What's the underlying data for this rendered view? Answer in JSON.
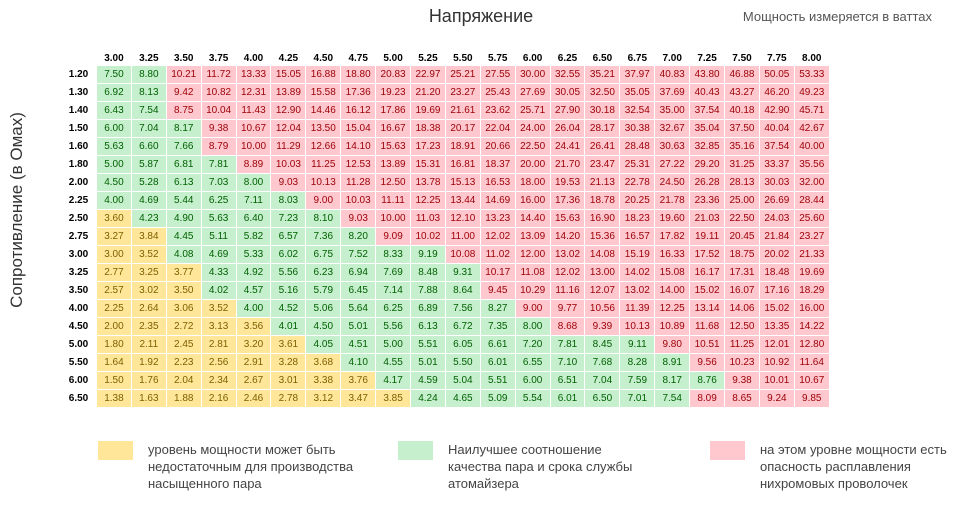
{
  "header": {
    "title": "Напряжение",
    "note": "Мощность измеряется в ваттах",
    "y_axis_label": "Сопротивление (в Омах)"
  },
  "colors": {
    "yellow": "#ffe699",
    "green": "#c6efce",
    "red": "#ffc7ce"
  },
  "chart_data": {
    "type": "table",
    "columns": [
      "3.00",
      "3.25",
      "3.50",
      "3.75",
      "4.00",
      "4.25",
      "4.50",
      "4.75",
      "5.00",
      "5.25",
      "5.50",
      "5.75",
      "6.00",
      "6.25",
      "6.50",
      "6.75",
      "7.00",
      "7.25",
      "7.50",
      "7.75",
      "8.00"
    ],
    "rows": [
      {
        "label": "1.20",
        "values": [
          "7.50",
          "8.80",
          "10.21",
          "11.72",
          "13.33",
          "15.05",
          "16.88",
          "18.80",
          "20.83",
          "22.97",
          "25.21",
          "27.55",
          "30.00",
          "32.55",
          "35.21",
          "37.97",
          "40.83",
          "43.80",
          "46.88",
          "50.05",
          "53.33"
        ],
        "classes": "ggrrrrrrrrrrrrrrrrrrr"
      },
      {
        "label": "1.30",
        "values": [
          "6.92",
          "8.13",
          "9.42",
          "10.82",
          "12.31",
          "13.89",
          "15.58",
          "17.36",
          "19.23",
          "21.20",
          "23.27",
          "25.43",
          "27.69",
          "30.05",
          "32.50",
          "35.05",
          "37.69",
          "40.43",
          "43.27",
          "46.20",
          "49.23"
        ],
        "classes": "ggrrrrrrrrrrrrrrrrrrr"
      },
      {
        "label": "1.40",
        "values": [
          "6.43",
          "7.54",
          "8.75",
          "10.04",
          "11.43",
          "12.90",
          "14.46",
          "16.12",
          "17.86",
          "19.69",
          "21.61",
          "23.62",
          "25.71",
          "27.90",
          "30.18",
          "32.54",
          "35.00",
          "37.54",
          "40.18",
          "42.90",
          "45.71"
        ],
        "classes": "ggrrrrrrrrrrrrrrrrrrr"
      },
      {
        "label": "1.50",
        "values": [
          "6.00",
          "7.04",
          "8.17",
          "9.38",
          "10.67",
          "12.04",
          "13.50",
          "15.04",
          "16.67",
          "18.38",
          "20.17",
          "22.04",
          "24.00",
          "26.04",
          "28.17",
          "30.38",
          "32.67",
          "35.04",
          "37.50",
          "40.04",
          "42.67"
        ],
        "classes": "gggrrrrrrrrrrrrrrrrrr"
      },
      {
        "label": "1.60",
        "values": [
          "5.63",
          "6.60",
          "7.66",
          "8.79",
          "10.00",
          "11.29",
          "12.66",
          "14.10",
          "15.63",
          "17.23",
          "18.91",
          "20.66",
          "22.50",
          "24.41",
          "26.41",
          "28.48",
          "30.63",
          "32.85",
          "35.16",
          "37.54",
          "40.00"
        ],
        "classes": "gggrrrrrrrrrrrrrrrrrr"
      },
      {
        "label": "1.80",
        "values": [
          "5.00",
          "5.87",
          "6.81",
          "7.81",
          "8.89",
          "10.03",
          "11.25",
          "12.53",
          "13.89",
          "15.31",
          "16.81",
          "18.37",
          "20.00",
          "21.70",
          "23.47",
          "25.31",
          "27.22",
          "29.20",
          "31.25",
          "33.37",
          "35.56"
        ],
        "classes": "ggggrrrrrrrrrrrrrrrrr"
      },
      {
        "label": "2.00",
        "values": [
          "4.50",
          "5.28",
          "6.13",
          "7.03",
          "8.00",
          "9.03",
          "10.13",
          "11.28",
          "12.50",
          "13.78",
          "15.13",
          "16.53",
          "18.00",
          "19.53",
          "21.13",
          "22.78",
          "24.50",
          "26.28",
          "28.13",
          "30.03",
          "32.00"
        ],
        "classes": "gggggrrrrrrrrrrrrrrrr"
      },
      {
        "label": "2.25",
        "values": [
          "4.00",
          "4.69",
          "5.44",
          "6.25",
          "7.11",
          "8.03",
          "9.00",
          "10.03",
          "11.11",
          "12.25",
          "13.44",
          "14.69",
          "16.00",
          "17.36",
          "18.78",
          "20.25",
          "21.78",
          "23.36",
          "25.00",
          "26.69",
          "28.44"
        ],
        "classes": "ggggggrrrrrrrrrrrrrrr"
      },
      {
        "label": "2.50",
        "values": [
          "3.60",
          "4.23",
          "4.90",
          "5.63",
          "6.40",
          "7.23",
          "8.10",
          "9.03",
          "10.00",
          "11.03",
          "12.10",
          "13.23",
          "14.40",
          "15.63",
          "16.90",
          "18.23",
          "19.60",
          "21.03",
          "22.50",
          "24.03",
          "25.60"
        ],
        "classes": "yggggggrrrrrrrrrrrrrr"
      },
      {
        "label": "2.75",
        "values": [
          "3.27",
          "3.84",
          "4.45",
          "5.11",
          "5.82",
          "6.57",
          "7.36",
          "8.20",
          "9.09",
          "10.02",
          "11.00",
          "12.02",
          "13.09",
          "14.20",
          "15.36",
          "16.57",
          "17.82",
          "19.11",
          "20.45",
          "21.84",
          "23.27"
        ],
        "classes": "yyggggggrrrrrrrrrrrrr"
      },
      {
        "label": "3.00",
        "values": [
          "3.00",
          "3.52",
          "4.08",
          "4.69",
          "5.33",
          "6.02",
          "6.75",
          "7.52",
          "8.33",
          "9.19",
          "10.08",
          "11.02",
          "12.00",
          "13.02",
          "14.08",
          "15.19",
          "16.33",
          "17.52",
          "18.75",
          "20.02",
          "21.33"
        ],
        "classes": "yyggggggggrrrrrrrrrrr"
      },
      {
        "label": "3.25",
        "values": [
          "2.77",
          "3.25",
          "3.77",
          "4.33",
          "4.92",
          "5.56",
          "6.23",
          "6.94",
          "7.69",
          "8.48",
          "9.31",
          "10.17",
          "11.08",
          "12.02",
          "13.00",
          "14.02",
          "15.08",
          "16.17",
          "17.31",
          "18.48",
          "19.69"
        ],
        "classes": "yyyggggggggrrrrrrrrrr"
      },
      {
        "label": "3.50",
        "values": [
          "2.57",
          "3.02",
          "3.50",
          "4.02",
          "4.57",
          "5.16",
          "5.79",
          "6.45",
          "7.14",
          "7.88",
          "8.64",
          "9.45",
          "10.29",
          "11.16",
          "12.07",
          "13.02",
          "14.00",
          "15.02",
          "16.07",
          "17.16",
          "18.29"
        ],
        "classes": "yyyggggggggrrrrrrrrrr"
      },
      {
        "label": "4.00",
        "values": [
          "2.25",
          "2.64",
          "3.06",
          "3.52",
          "4.00",
          "4.52",
          "5.06",
          "5.64",
          "6.25",
          "6.89",
          "7.56",
          "8.27",
          "9.00",
          "9.77",
          "10.56",
          "11.39",
          "12.25",
          "13.14",
          "14.06",
          "15.02",
          "16.00"
        ],
        "classes": "yyyyggggggggrrrrrrrrr"
      },
      {
        "label": "4.50",
        "values": [
          "2.00",
          "2.35",
          "2.72",
          "3.13",
          "3.56",
          "4.01",
          "4.50",
          "5.01",
          "5.56",
          "6.13",
          "6.72",
          "7.35",
          "8.00",
          "8.68",
          "9.39",
          "10.13",
          "10.89",
          "11.68",
          "12.50",
          "13.35",
          "14.22"
        ],
        "classes": "yyyyyggggggggrrrrrrrr"
      },
      {
        "label": "5.00",
        "values": [
          "1.80",
          "2.11",
          "2.45",
          "2.81",
          "3.20",
          "3.61",
          "4.05",
          "4.51",
          "5.00",
          "5.51",
          "6.05",
          "6.61",
          "7.20",
          "7.81",
          "8.45",
          "9.11",
          "9.80",
          "10.51",
          "11.25",
          "12.01",
          "12.80"
        ],
        "classes": "yyyyyyggggggggggrrrrr"
      },
      {
        "label": "5.50",
        "values": [
          "1.64",
          "1.92",
          "2.23",
          "2.56",
          "2.91",
          "3.28",
          "3.68",
          "4.10",
          "4.55",
          "5.01",
          "5.50",
          "6.01",
          "6.55",
          "7.10",
          "7.68",
          "8.28",
          "8.91",
          "9.56",
          "10.23",
          "10.92",
          "11.64"
        ],
        "classes": "yyyyyyyggggggggggrrrr"
      },
      {
        "label": "6.00",
        "values": [
          "1.50",
          "1.76",
          "2.04",
          "2.34",
          "2.67",
          "3.01",
          "3.38",
          "3.76",
          "4.17",
          "4.59",
          "5.04",
          "5.51",
          "6.00",
          "6.51",
          "7.04",
          "7.59",
          "8.17",
          "8.76",
          "9.38",
          "10.01",
          "10.67"
        ],
        "classes": "yyyyyyyyggggggggggrrr"
      },
      {
        "label": "6.50",
        "values": [
          "1.38",
          "1.63",
          "1.88",
          "2.16",
          "2.46",
          "2.78",
          "3.12",
          "3.47",
          "3.85",
          "4.24",
          "4.65",
          "5.09",
          "5.54",
          "6.01",
          "6.50",
          "7.01",
          "7.54",
          "8.09",
          "8.65",
          "9.24",
          "9.85"
        ],
        "classes": "yyyyyyyyyggggggggrrrr"
      }
    ]
  },
  "legend": [
    {
      "color": "yellow",
      "text": "уровень мощности  может быть недостаточным для производства насыщенного пара"
    },
    {
      "color": "green",
      "text": "Наилучшее соотношение качества пара и срока службы атомайзера"
    },
    {
      "color": "red",
      "text": "на этом уровне мощности есть опасность расплавления нихромовых проволочек"
    }
  ]
}
